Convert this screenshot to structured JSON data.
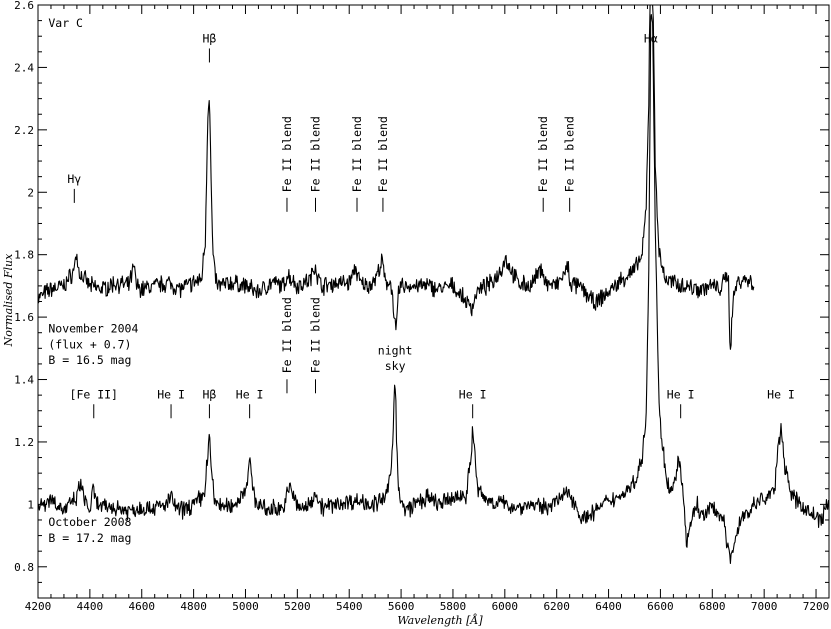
{
  "chart_data": {
    "type": "line",
    "xlabel": "Wavelength [Å]",
    "ylabel": "Normalised Flux",
    "xlim": [
      4200,
      7250
    ],
    "ylim": [
      0.7,
      2.6
    ],
    "x_ticks": [
      4200,
      4400,
      4600,
      4800,
      5000,
      5200,
      5400,
      5600,
      5800,
      6000,
      6200,
      6400,
      6600,
      6800,
      7000,
      7200
    ],
    "y_ticks": [
      0.8,
      1,
      1.2,
      1.4,
      1.6,
      1.8,
      2,
      2.2,
      2.4,
      2.6
    ],
    "grid": false,
    "legend": "none",
    "series": [
      {
        "description_label": "November 2004 (flux + 0.7)",
        "x": [
          4200,
          4250,
          4300,
          4340,
          4345,
          4360,
          4400,
          4450,
          4500,
          4550,
          4570,
          4580,
          4600,
          4650,
          4700,
          4750,
          4800,
          4830,
          4845,
          4855,
          4861,
          4868,
          4875,
          4890,
          4950,
          5000,
          5050,
          5100,
          5150,
          5160,
          5200,
          5250,
          5270,
          5280,
          5300,
          5350,
          5400,
          5425,
          5440,
          5470,
          5500,
          5528,
          5540,
          5560,
          5570,
          5575,
          5580,
          5585,
          5590,
          5600,
          5650,
          5700,
          5750,
          5800,
          5850,
          5875,
          5890,
          5950,
          5990,
          6000,
          6050,
          6100,
          6145,
          6155,
          6200,
          6245,
          6250,
          6300,
          6350,
          6370,
          6400,
          6450,
          6500,
          6530,
          6545,
          6555,
          6563,
          6570,
          6580,
          6595,
          6620,
          6650,
          6700,
          6750,
          6800,
          6830,
          6850,
          6862,
          6866,
          6870,
          6880,
          6900,
          6930,
          6960
        ],
        "y": [
          1.66,
          1.69,
          1.7,
          1.75,
          1.81,
          1.74,
          1.7,
          1.69,
          1.71,
          1.7,
          1.76,
          1.7,
          1.69,
          1.7,
          1.71,
          1.69,
          1.71,
          1.72,
          1.85,
          2.25,
          2.33,
          2.0,
          1.79,
          1.7,
          1.71,
          1.7,
          1.68,
          1.71,
          1.7,
          1.74,
          1.7,
          1.72,
          1.77,
          1.72,
          1.7,
          1.71,
          1.71,
          1.76,
          1.71,
          1.7,
          1.72,
          1.78,
          1.7,
          1.72,
          1.64,
          1.58,
          1.55,
          1.6,
          1.68,
          1.7,
          1.7,
          1.7,
          1.69,
          1.7,
          1.65,
          1.63,
          1.68,
          1.71,
          1.76,
          1.79,
          1.71,
          1.7,
          1.76,
          1.71,
          1.7,
          1.76,
          1.71,
          1.69,
          1.64,
          1.66,
          1.68,
          1.72,
          1.75,
          1.8,
          1.95,
          2.3,
          2.85,
          2.7,
          2.1,
          1.8,
          1.72,
          1.71,
          1.7,
          1.69,
          1.7,
          1.69,
          1.72,
          1.74,
          1.58,
          1.49,
          1.66,
          1.72,
          1.72,
          1.71
        ]
      },
      {
        "description_label": "October 2008",
        "x": [
          4200,
          4250,
          4300,
          4350,
          4365,
          4380,
          4400,
          4413,
          4425,
          4450,
          4500,
          4550,
          4600,
          4650,
          4700,
          4713,
          4730,
          4750,
          4800,
          4840,
          4855,
          4861,
          4868,
          4880,
          4920,
          4960,
          5000,
          5010,
          5016,
          5025,
          5040,
          5080,
          5120,
          5150,
          5160,
          5175,
          5200,
          5240,
          5265,
          5270,
          5280,
          5300,
          5350,
          5400,
          5450,
          5500,
          5540,
          5560,
          5570,
          5575,
          5577,
          5580,
          5583,
          5590,
          5600,
          5620,
          5650,
          5700,
          5750,
          5800,
          5850,
          5870,
          5876,
          5882,
          5895,
          5920,
          5950,
          6000,
          6050,
          6100,
          6150,
          6200,
          6250,
          6300,
          6350,
          6400,
          6450,
          6500,
          6530,
          6545,
          6555,
          6563,
          6570,
          6580,
          6595,
          6620,
          6640,
          6660,
          6670,
          6678,
          6690,
          6700,
          6720,
          6740,
          6760,
          6800,
          6840,
          6860,
          6870,
          6890,
          6910,
          6940,
          6980,
          7010,
          7040,
          7055,
          7065,
          7080,
          7110,
          7140,
          7180,
          7220,
          7250
        ],
        "y": [
          0.99,
          1.02,
          0.98,
          1.02,
          1.07,
          1.01,
          0.98,
          1.05,
          1.0,
          0.99,
          0.99,
          0.98,
          0.99,
          0.99,
          1.0,
          1.03,
          0.99,
          0.98,
          1.0,
          1.03,
          1.16,
          1.22,
          1.12,
          1.01,
          0.99,
          1.0,
          1.05,
          1.1,
          1.14,
          1.07,
          1.01,
          0.98,
          0.99,
          0.99,
          1.03,
          1.06,
          0.99,
          0.99,
          1.03,
          1.05,
          1.01,
          0.99,
          1.0,
          1.01,
          1.01,
          1.0,
          1.02,
          1.09,
          1.25,
          1.38,
          1.4,
          1.35,
          1.2,
          1.05,
          1.0,
          0.98,
          1.0,
          1.02,
          1.0,
          1.02,
          1.03,
          1.15,
          1.25,
          1.18,
          1.05,
          1.02,
          1.01,
          1.0,
          0.99,
          1.0,
          0.99,
          1.01,
          1.04,
          0.95,
          0.98,
          1.01,
          1.03,
          1.07,
          1.15,
          1.3,
          1.75,
          2.6,
          2.55,
          1.9,
          1.3,
          1.1,
          1.03,
          1.08,
          1.16,
          1.1,
          1.0,
          0.87,
          0.95,
          1.0,
          0.96,
          0.99,
          0.96,
          0.86,
          0.82,
          0.9,
          0.95,
          0.98,
          1.01,
          1.02,
          1.05,
          1.18,
          1.26,
          1.12,
          1.02,
          1.0,
          0.97,
          0.95,
          1.01
        ]
      }
    ],
    "annotations": [
      {
        "text": "Var C",
        "x": 4240,
        "y": 2.53
      },
      {
        "text": "Hγ",
        "x": 4340,
        "y": 2.03,
        "tick_x": 4340
      },
      {
        "text": "Hβ",
        "x": 4861,
        "y": 2.48,
        "tick_x": 4861
      },
      {
        "text": "Fe II blend",
        "x": 5160,
        "tick_x": 5160,
        "vertical": true
      },
      {
        "text": "Fe II blend",
        "x": 5270,
        "tick_x": 5270,
        "vertical": true
      },
      {
        "text": "Fe II blend",
        "x": 5430,
        "tick_x": 5430,
        "vertical": true
      },
      {
        "text": "Fe II blend",
        "x": 5530,
        "tick_x": 5530,
        "vertical": true
      },
      {
        "text": "Fe II blend",
        "x": 6148,
        "tick_x": 6148,
        "vertical": true
      },
      {
        "text": "Fe II blend",
        "x": 6250,
        "tick_x": 6250,
        "vertical": true
      },
      {
        "text": "Hα",
        "x": 6563,
        "y": 2.48
      },
      {
        "text": "November 2004",
        "x": 4240,
        "y": 1.55
      },
      {
        "text": "(flux + 0.7)",
        "x": 4240,
        "y": 1.5
      },
      {
        "text": "B = 16.5 mag",
        "x": 4240,
        "y": 1.45
      },
      {
        "text": "Fe II blend",
        "x": 5160,
        "tick_x": 5160,
        "vertical": true
      },
      {
        "text": "Fe II blend",
        "x": 5270,
        "tick_x": 5270,
        "vertical": true
      },
      {
        "text": "night",
        "x": 5577,
        "y": 1.48
      },
      {
        "text": "sky",
        "x": 5577,
        "y": 1.43
      },
      {
        "text": "[Fe II]",
        "x": 4415,
        "y": 1.34,
        "tick_x": 4415
      },
      {
        "text": "He I",
        "x": 4713,
        "y": 1.34,
        "tick_x": 4713
      },
      {
        "text": "Hβ",
        "x": 4861,
        "y": 1.34,
        "tick_x": 4861
      },
      {
        "text": "He I",
        "x": 5016,
        "y": 1.34,
        "tick_x": 5016
      },
      {
        "text": "He I",
        "x": 5876,
        "y": 1.34,
        "tick_x": 5876
      },
      {
        "text": "He I",
        "x": 6678,
        "y": 1.34,
        "tick_x": 6678
      },
      {
        "text": "He I",
        "x": 7065,
        "y": 1.34
      },
      {
        "text": "October 2008",
        "x": 4240,
        "y": 0.93
      },
      {
        "text": "B = 17.2 mag",
        "x": 4240,
        "y": 0.88
      }
    ]
  }
}
